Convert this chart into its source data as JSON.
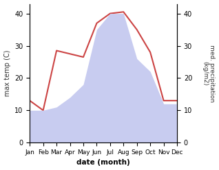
{
  "months": [
    "Jan",
    "Feb",
    "Mar",
    "Apr",
    "May",
    "Jun",
    "Jul",
    "Aug",
    "Sep",
    "Oct",
    "Nov",
    "Dec"
  ],
  "temperature": [
    13.0,
    10.0,
    28.5,
    27.5,
    26.5,
    37.0,
    40.0,
    40.5,
    35.0,
    28.0,
    13.0,
    13.0
  ],
  "precipitation": [
    10.0,
    10.0,
    11.0,
    14.0,
    18.0,
    35.0,
    40.0,
    40.0,
    26.0,
    22.0,
    12.0,
    12.0
  ],
  "temp_color": "#cc4444",
  "precip_fill_color": "#c8ccf0",
  "ylim": [
    0,
    43
  ],
  "yticks": [
    0,
    10,
    20,
    30,
    40
  ],
  "xlabel": "date (month)",
  "ylabel_left": "max temp (C)",
  "ylabel_right": "med. precipitation\n(kg/m2)",
  "bg_color": "#ffffff"
}
